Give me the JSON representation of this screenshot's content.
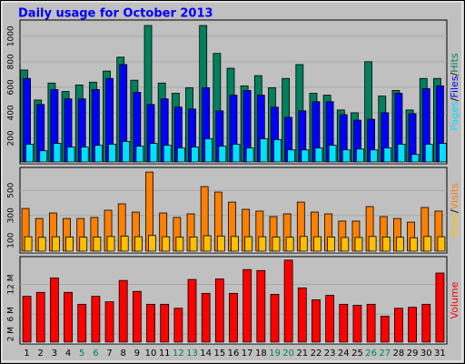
{
  "title": "Daily usage for October 2013",
  "separator": "/",
  "chart_data": [
    {
      "type": "bar",
      "series": [
        {
          "name": "Hits",
          "color": "#00805c",
          "values": [
            735,
            500,
            633,
            567,
            618,
            640,
            727,
            836,
            655,
            1084,
            633,
            553,
            596,
            1084,
            865,
            749,
            611,
            691,
            596,
            669,
            778,
            553,
            538,
            422,
            400,
            800,
            531,
            575,
            422,
            669,
            669
          ]
        },
        {
          "name": "Files",
          "color": "#0000ff",
          "values": [
            669,
            465,
            582,
            509,
            509,
            582,
            669,
            778,
            560,
            465,
            509,
            444,
            429,
            596,
            415,
            538,
            575,
            538,
            444,
            364,
            415,
            487,
            487,
            385,
            342,
            349,
            400,
            553,
            393,
            589,
            611
          ]
        },
        {
          "name": "Pages",
          "color": "#00e0ff",
          "values": [
            153,
            102,
            160,
            131,
            131,
            145,
            153,
            175,
            138,
            160,
            145,
            124,
            131,
            196,
            138,
            153,
            124,
            196,
            189,
            109,
            109,
            124,
            145,
            109,
            116,
            109,
            124,
            153,
            73,
            153,
            160
          ]
        }
      ],
      "ylim": [
        0,
        1127
      ],
      "yticks": [
        200,
        400,
        600,
        800,
        1000
      ]
    },
    {
      "type": "bar",
      "series": [
        {
          "name": "Visits",
          "color": "#ff8000",
          "values": [
            356,
            276,
            320,
            276,
            276,
            284,
            342,
            393,
            327,
            647,
            320,
            284,
            313,
            531,
            487,
            407,
            349,
            335,
            291,
            313,
            407,
            327,
            313,
            255,
            255,
            371,
            291,
            276,
            247,
            364,
            335
          ]
        },
        {
          "name": "Sites",
          "color": "#ffc000",
          "values": [
            130,
            125,
            130,
            128,
            126,
            128,
            132,
            135,
            130,
            140,
            130,
            126,
            128,
            138,
            135,
            132,
            130,
            130,
            128,
            126,
            132,
            130,
            128,
            124,
            124,
            132,
            128,
            126,
            122,
            132,
            130
          ]
        }
      ],
      "ylim": [
        0,
        684
      ],
      "yticks": [
        100,
        300,
        500
      ]
    },
    {
      "type": "bar",
      "categories": [
        "1",
        "2",
        "3",
        "4",
        "5",
        "6",
        "7",
        "8",
        "9",
        "10",
        "11",
        "12",
        "13",
        "14",
        "15",
        "16",
        "17",
        "18",
        "19",
        "20",
        "21",
        "22",
        "23",
        "24",
        "25",
        "26",
        "27",
        "28",
        "29",
        "30",
        "31"
      ],
      "category_colors": [
        "#000000",
        "#000000",
        "#000000",
        "#000000",
        "#00805c",
        "#00805c",
        "#000000",
        "#000000",
        "#000000",
        "#000000",
        "#000000",
        "#00805c",
        "#00805c",
        "#000000",
        "#000000",
        "#000000",
        "#000000",
        "#000000",
        "#00805c",
        "#00805c",
        "#000000",
        "#000000",
        "#000000",
        "#000000",
        "#000000",
        "#00805c",
        "#00805c",
        "#000000",
        "#000000",
        "#000000",
        "#000000"
      ],
      "series": [
        {
          "name": "Volume",
          "color": "#ff0000",
          "values": [
            9.6,
            10.4,
            13.3,
            10.4,
            8.0,
            9.6,
            8.5,
            12.8,
            10.6,
            8.0,
            8.0,
            7.2,
            13.0,
            10.2,
            13.1,
            10.2,
            15.0,
            14.8,
            10.0,
            16.9,
            11.3,
            8.9,
            9.8,
            8.0,
            7.8,
            8.0,
            5.6,
            7.2,
            7.4,
            8.0,
            14.3
          ]
        }
      ],
      "ylim": [
        0,
        17.6
      ],
      "yticks": [
        {
          "value": 2,
          "label": "2 M"
        },
        {
          "value": 6,
          "label": "6 M"
        },
        {
          "value": 12,
          "label": "12 M"
        }
      ]
    }
  ]
}
